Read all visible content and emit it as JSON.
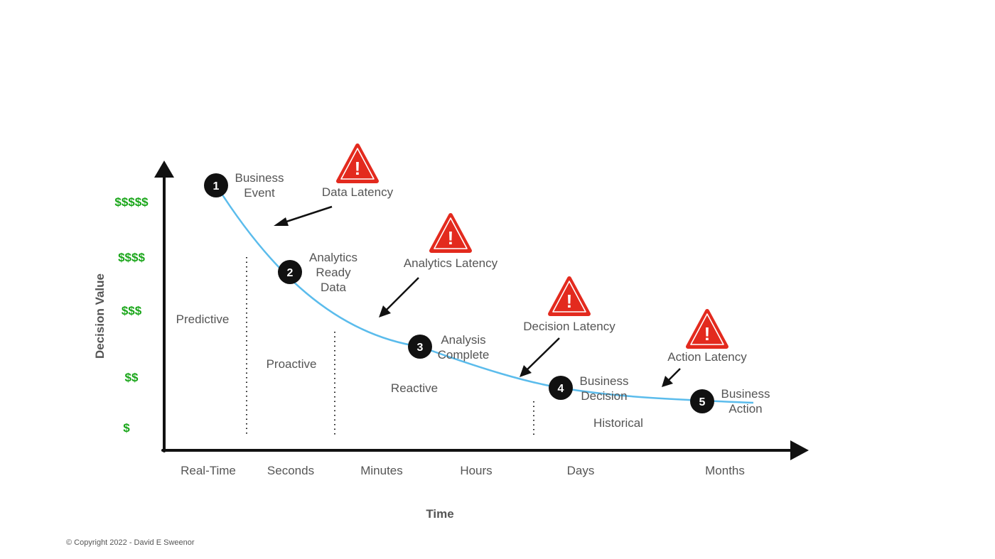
{
  "axes": {
    "y_title": "Decision Value",
    "x_title": "Time",
    "y_ticks": [
      "$$$$$",
      "$$$$",
      "$$$",
      "$$",
      "$"
    ],
    "x_ticks": [
      "Real-Time",
      "Seconds",
      "Minutes",
      "Hours",
      "Days",
      "Months"
    ]
  },
  "zones": [
    "Predictive",
    "Proactive",
    "Reactive",
    "Historical"
  ],
  "steps": [
    {
      "number": "1",
      "lines": [
        "Business",
        "Event"
      ]
    },
    {
      "number": "2",
      "lines": [
        "Analytics",
        "Ready",
        "Data"
      ]
    },
    {
      "number": "3",
      "lines": [
        "Analysis",
        "Complete"
      ]
    },
    {
      "number": "4",
      "lines": [
        "Business",
        "Decision"
      ]
    },
    {
      "number": "5",
      "lines": [
        "Business",
        "Action"
      ]
    }
  ],
  "latencies": [
    {
      "label": "Data Latency",
      "symbol": "!"
    },
    {
      "label": "Analytics Latency",
      "symbol": "!"
    },
    {
      "label": "Decision Latency",
      "symbol": "!"
    },
    {
      "label": "Action Latency",
      "symbol": "!"
    }
  ],
  "copyright": "© Copyright 2022 - David E Sweenor",
  "colors": {
    "curve": "#5bbcec",
    "warning": "#e32a1e",
    "dollar": "#1aa61a",
    "text": "#555555",
    "axis": "#111111"
  }
}
